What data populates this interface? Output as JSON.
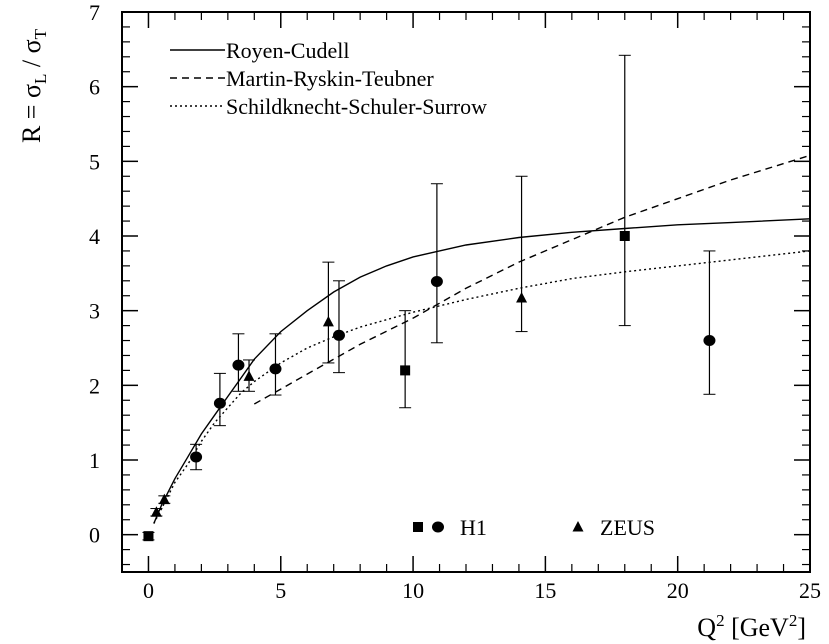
{
  "chart_data": {
    "type": "scatter",
    "xlabel": "Q² [GeV²]",
    "ylabel": "R = σL / σT",
    "xlim": [
      -1,
      25
    ],
    "ylim": [
      -0.5,
      7
    ],
    "x_ticks": [
      0,
      5,
      10,
      15,
      20,
      25
    ],
    "y_ticks": [
      0,
      1,
      2,
      3,
      4,
      5,
      6,
      7
    ],
    "grid": false,
    "legend_position": "top-left",
    "series": [
      {
        "name": "Royen-Cudell",
        "kind": "line",
        "style": "solid",
        "x": [
          0.2,
          0.5,
          1,
          1.5,
          2,
          2.5,
          3,
          3.5,
          4,
          5,
          6,
          7,
          8,
          9,
          10,
          12,
          14,
          16,
          18,
          20,
          22,
          25
        ],
        "y": [
          0.15,
          0.4,
          0.75,
          1.05,
          1.35,
          1.6,
          1.85,
          2.1,
          2.35,
          2.72,
          3.0,
          3.25,
          3.45,
          3.6,
          3.72,
          3.88,
          3.98,
          4.05,
          4.1,
          4.15,
          4.18,
          4.23
        ]
      },
      {
        "name": "Martin-Ryskin-Teubner",
        "kind": "line",
        "style": "dashed",
        "x": [
          4,
          5,
          6,
          7,
          8,
          10,
          12,
          14,
          16,
          18,
          20,
          22,
          25
        ],
        "y": [
          1.75,
          1.95,
          2.15,
          2.35,
          2.55,
          2.9,
          3.3,
          3.65,
          3.95,
          4.25,
          4.5,
          4.75,
          5.08
        ]
      },
      {
        "name": "Schildknecht-Schuler-Surrow",
        "kind": "line",
        "style": "dotted",
        "x": [
          0.2,
          0.5,
          1,
          1.5,
          2,
          2.5,
          3,
          3.5,
          4,
          5,
          6,
          7,
          8,
          10,
          12,
          14,
          16,
          18,
          20,
          22,
          25
        ],
        "y": [
          0.15,
          0.35,
          0.7,
          0.95,
          1.25,
          1.5,
          1.7,
          1.9,
          2.05,
          2.3,
          2.5,
          2.65,
          2.78,
          2.98,
          3.15,
          3.3,
          3.43,
          3.52,
          3.6,
          3.68,
          3.8
        ]
      },
      {
        "name": "H1",
        "kind": "points",
        "markers": [
          "square",
          "circle"
        ],
        "points": [
          {
            "x": 0.0,
            "y": -0.02,
            "err_lo": 0.05,
            "err_hi": 0.05,
            "marker": "square"
          },
          {
            "x": 1.8,
            "y": 1.04,
            "err_lo": 0.17,
            "err_hi": 0.17,
            "marker": "circle"
          },
          {
            "x": 2.7,
            "y": 1.76,
            "err_lo": 0.3,
            "err_hi": 0.4,
            "marker": "circle"
          },
          {
            "x": 3.4,
            "y": 2.27,
            "err_lo": 0.35,
            "err_hi": 0.42,
            "marker": "circle"
          },
          {
            "x": 4.8,
            "y": 2.22,
            "err_lo": 0.35,
            "err_hi": 0.47,
            "marker": "circle"
          },
          {
            "x": 7.2,
            "y": 2.67,
            "err_lo": 0.5,
            "err_hi": 0.73,
            "marker": "circle"
          },
          {
            "x": 9.7,
            "y": 2.2,
            "err_lo": 0.5,
            "err_hi": 0.8,
            "marker": "square"
          },
          {
            "x": 10.9,
            "y": 3.39,
            "err_lo": 0.82,
            "err_hi": 1.31,
            "marker": "circle"
          },
          {
            "x": 18.0,
            "y": 4.0,
            "err_lo": 1.2,
            "err_hi": 2.42,
            "marker": "square"
          },
          {
            "x": 21.2,
            "y": 2.6,
            "err_lo": 0.72,
            "err_hi": 1.2,
            "marker": "circle"
          }
        ]
      },
      {
        "name": "ZEUS",
        "kind": "points",
        "markers": [
          "triangle"
        ],
        "points": [
          {
            "x": 0.3,
            "y": 0.3,
            "err_lo": 0.05,
            "err_hi": 0.05,
            "marker": "triangle"
          },
          {
            "x": 0.6,
            "y": 0.47,
            "err_lo": 0.05,
            "err_hi": 0.05,
            "marker": "triangle"
          },
          {
            "x": 3.8,
            "y": 2.12,
            "err_lo": 0.2,
            "err_hi": 0.22,
            "marker": "triangle"
          },
          {
            "x": 6.8,
            "y": 2.85,
            "err_lo": 0.55,
            "err_hi": 0.8,
            "marker": "triangle"
          },
          {
            "x": 14.1,
            "y": 3.17,
            "err_lo": 0.45,
            "err_hi": 1.63,
            "marker": "triangle"
          }
        ]
      }
    ]
  }
}
